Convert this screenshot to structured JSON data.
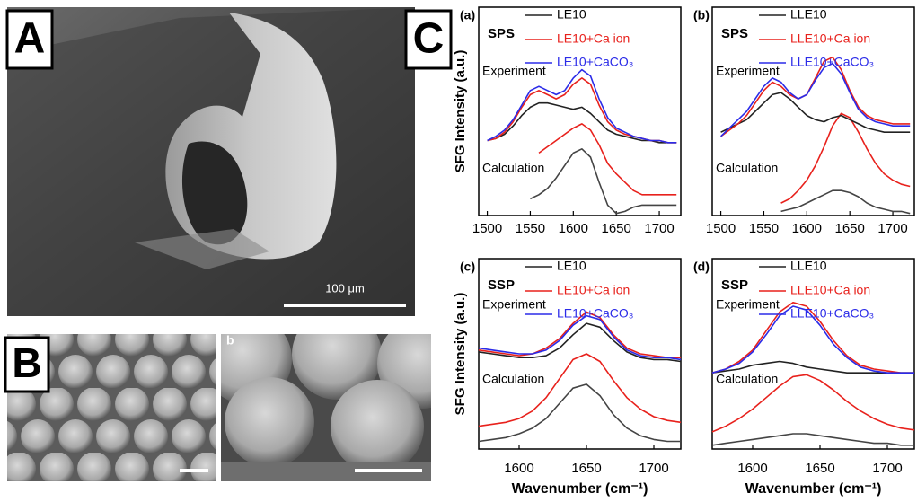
{
  "figure": {
    "labels": [
      "A",
      "B",
      "C"
    ],
    "scale_bar": "100 μm",
    "sub_label": "b"
  },
  "chart_data": [
    {
      "type": "line",
      "panel_label": "(a)",
      "mode": "SPS",
      "ylabel": "SFG Intensity (a.u.)",
      "x": [
        1500,
        1510,
        1520,
        1530,
        1540,
        1550,
        1560,
        1570,
        1580,
        1590,
        1600,
        1610,
        1620,
        1630,
        1640,
        1650,
        1660,
        1670,
        1680,
        1690,
        1700,
        1710,
        1720
      ],
      "xlim": [
        1490,
        1725
      ],
      "xticks": [
        1500,
        1550,
        1600,
        1650,
        1700
      ],
      "ylim": [
        0,
        10
      ],
      "experiment": {
        "label": "Experiment",
        "series": [
          {
            "name": "LE10",
            "color": "#222222",
            "values": [
              3.6,
              3.7,
              3.9,
              4.3,
              4.8,
              5.2,
              5.4,
              5.4,
              5.3,
              5.2,
              5.1,
              5.2,
              4.9,
              4.5,
              4.1,
              3.9,
              3.8,
              3.7,
              3.6,
              3.6,
              3.5,
              3.5,
              3.5
            ]
          },
          {
            "name": "LE10+Ca ion",
            "color": "#e8211c",
            "values": [
              3.6,
              3.7,
              4.0,
              4.5,
              5.2,
              5.8,
              6.0,
              5.8,
              5.6,
              5.8,
              6.3,
              6.6,
              6.3,
              5.3,
              4.5,
              4.1,
              3.9,
              3.8,
              3.7,
              3.6,
              3.6,
              3.5,
              3.5
            ]
          },
          {
            "name": "LE10+CaCO₃",
            "color": "#2b2be8",
            "values": [
              3.6,
              3.8,
              4.1,
              4.6,
              5.3,
              6.0,
              6.2,
              6.0,
              5.8,
              6.0,
              6.6,
              7.0,
              6.7,
              5.6,
              4.7,
              4.2,
              4.0,
              3.8,
              3.7,
              3.6,
              3.6,
              3.5,
              3.5
            ]
          }
        ]
      },
      "calculation": {
        "label": "Calculation",
        "series": [
          {
            "color": "#444444",
            "values": [
              null,
              null,
              null,
              null,
              null,
              0.8,
              1.0,
              1.3,
              1.8,
              2.4,
              3.0,
              3.2,
              2.8,
              1.6,
              0.5,
              0.1,
              0.2,
              0.4,
              0.5,
              0.5,
              0.5,
              0.5,
              0.5
            ]
          },
          {
            "color": "#e8211c",
            "values": [
              null,
              null,
              null,
              null,
              null,
              null,
              3.0,
              3.3,
              3.6,
              3.9,
              4.2,
              4.4,
              4.1,
              3.4,
              2.5,
              2.0,
              1.6,
              1.2,
              1.0,
              1.0,
              1.0,
              1.0,
              1.0
            ]
          }
        ]
      }
    },
    {
      "type": "line",
      "panel_label": "(b)",
      "mode": "SPS",
      "x": [
        1500,
        1510,
        1520,
        1530,
        1540,
        1550,
        1560,
        1570,
        1580,
        1590,
        1600,
        1610,
        1620,
        1630,
        1640,
        1650,
        1660,
        1670,
        1680,
        1690,
        1700,
        1710,
        1720
      ],
      "xlim": [
        1490,
        1725
      ],
      "xticks": [
        1500,
        1550,
        1600,
        1650,
        1700
      ],
      "ylim": [
        0,
        10
      ],
      "experiment": {
        "label": "Experiment",
        "series": [
          {
            "name": "LLE10",
            "color": "#222222",
            "values": [
              4.0,
              4.2,
              4.4,
              4.6,
              5.0,
              5.4,
              5.8,
              5.9,
              5.6,
              5.2,
              4.8,
              4.6,
              4.5,
              4.7,
              4.8,
              4.6,
              4.4,
              4.2,
              4.1,
              4.0,
              4.0,
              4.0,
              4.0
            ]
          },
          {
            "name": "LLE10+Ca ion",
            "color": "#e8211c",
            "values": [
              3.8,
              4.1,
              4.4,
              4.8,
              5.4,
              6.0,
              6.4,
              6.2,
              5.8,
              5.6,
              5.8,
              6.6,
              7.4,
              7.6,
              7.0,
              6.0,
              5.2,
              4.8,
              4.6,
              4.5,
              4.4,
              4.4,
              4.4
            ]
          },
          {
            "name": "LLE10+CaCO₃",
            "color": "#2b2be8",
            "values": [
              3.8,
              4.2,
              4.6,
              5.0,
              5.6,
              6.2,
              6.6,
              6.4,
              5.9,
              5.6,
              5.8,
              6.5,
              7.1,
              7.3,
              6.8,
              5.9,
              5.1,
              4.7,
              4.5,
              4.4,
              4.3,
              4.3,
              4.3
            ]
          }
        ]
      },
      "calculation": {
        "label": "Calculation",
        "series": [
          {
            "color": "#444444",
            "values": [
              null,
              null,
              null,
              null,
              null,
              null,
              null,
              0.2,
              0.3,
              0.4,
              0.6,
              0.8,
              1.0,
              1.2,
              1.2,
              1.1,
              0.9,
              0.6,
              0.4,
              0.3,
              0.2,
              0.2,
              0.1
            ]
          },
          {
            "color": "#e8211c",
            "values": [
              null,
              null,
              null,
              null,
              null,
              null,
              null,
              0.6,
              0.8,
              1.2,
              1.7,
              2.4,
              3.3,
              4.3,
              4.9,
              4.7,
              4.0,
              3.2,
              2.5,
              2.0,
              1.7,
              1.5,
              1.4
            ]
          }
        ]
      }
    },
    {
      "type": "line",
      "panel_label": "(c)",
      "mode": "SSP",
      "ylabel": "SFG Intensity (a.u.)",
      "xlabel": "Wavenumber (cm⁻¹)",
      "x": [
        1570,
        1580,
        1590,
        1600,
        1610,
        1620,
        1630,
        1640,
        1650,
        1660,
        1670,
        1680,
        1690,
        1700,
        1710,
        1720
      ],
      "xlim": [
        1570,
        1720
      ],
      "xticks": [
        1600,
        1650,
        1700
      ],
      "ylim": [
        0,
        10
      ],
      "experiment": {
        "label": "Experiment",
        "series": [
          {
            "name": "LE10",
            "color": "#222222",
            "values": [
              5.1,
              5.0,
              4.9,
              4.8,
              4.8,
              4.9,
              5.3,
              6.0,
              6.6,
              6.4,
              5.7,
              5.1,
              4.8,
              4.7,
              4.7,
              4.6
            ]
          },
          {
            "name": "LE10+Ca ion",
            "color": "#e8211c",
            "values": [
              5.2,
              5.1,
              5.0,
              4.9,
              5.0,
              5.3,
              5.8,
              6.6,
              7.2,
              6.9,
              6.0,
              5.3,
              5.0,
              4.9,
              4.8,
              4.8
            ]
          },
          {
            "name": "LE10+CaCO₃",
            "color": "#2b2be8",
            "values": [
              5.3,
              5.2,
              5.1,
              5.0,
              5.0,
              5.2,
              5.7,
              6.5,
              7.0,
              6.8,
              5.9,
              5.2,
              4.9,
              4.8,
              4.8,
              4.7
            ]
          }
        ]
      },
      "calculation": {
        "label": "Calculation",
        "series": [
          {
            "color": "#444444",
            "values": [
              0.4,
              0.5,
              0.6,
              0.8,
              1.1,
              1.6,
              2.4,
              3.2,
              3.4,
              2.8,
              1.8,
              1.1,
              0.7,
              0.5,
              0.4,
              0.4
            ]
          },
          {
            "color": "#e8211c",
            "values": [
              1.2,
              1.3,
              1.4,
              1.6,
              2.0,
              2.7,
              3.7,
              4.7,
              5.0,
              4.6,
              3.6,
              2.7,
              2.1,
              1.7,
              1.5,
              1.4
            ]
          }
        ]
      }
    },
    {
      "type": "line",
      "panel_label": "(d)",
      "mode": "SSP",
      "xlabel": "Wavenumber (cm⁻¹)",
      "x": [
        1570,
        1580,
        1590,
        1600,
        1610,
        1620,
        1630,
        1640,
        1650,
        1660,
        1670,
        1680,
        1690,
        1700,
        1710,
        1720
      ],
      "xlim": [
        1570,
        1720
      ],
      "xticks": [
        1600,
        1650,
        1700
      ],
      "ylim": [
        0,
        10
      ],
      "experiment": {
        "label": "Experiment",
        "series": [
          {
            "name": "LLE10",
            "color": "#222222",
            "values": [
              4.0,
              4.1,
              4.2,
              4.4,
              4.5,
              4.6,
              4.5,
              4.3,
              4.2,
              4.1,
              4.0,
              4.0,
              4.0,
              4.0,
              4.0,
              4.0
            ]
          },
          {
            "name": "LLE10+Ca ion",
            "color": "#e8211c",
            "values": [
              4.0,
              4.2,
              4.6,
              5.2,
              6.2,
              7.2,
              7.7,
              7.5,
              6.7,
              5.7,
              4.9,
              4.4,
              4.2,
              4.1,
              4.0,
              4.0
            ]
          },
          {
            "name": "LLE10+CaCO₃",
            "color": "#2b2be8",
            "values": [
              4.0,
              4.2,
              4.5,
              5.1,
              6.0,
              7.0,
              7.5,
              7.3,
              6.5,
              5.5,
              4.8,
              4.3,
              4.1,
              4.0,
              4.0,
              4.0
            ]
          }
        ]
      },
      "calculation": {
        "label": "Calculation",
        "series": [
          {
            "color": "#444444",
            "values": [
              0.2,
              0.3,
              0.4,
              0.5,
              0.6,
              0.7,
              0.8,
              0.8,
              0.7,
              0.6,
              0.5,
              0.4,
              0.3,
              0.3,
              0.2,
              0.2
            ]
          },
          {
            "color": "#e8211c",
            "values": [
              0.9,
              1.2,
              1.6,
              2.1,
              2.7,
              3.3,
              3.8,
              3.9,
              3.6,
              3.1,
              2.5,
              2.0,
              1.6,
              1.3,
              1.1,
              1.0
            ]
          }
        ]
      }
    }
  ]
}
